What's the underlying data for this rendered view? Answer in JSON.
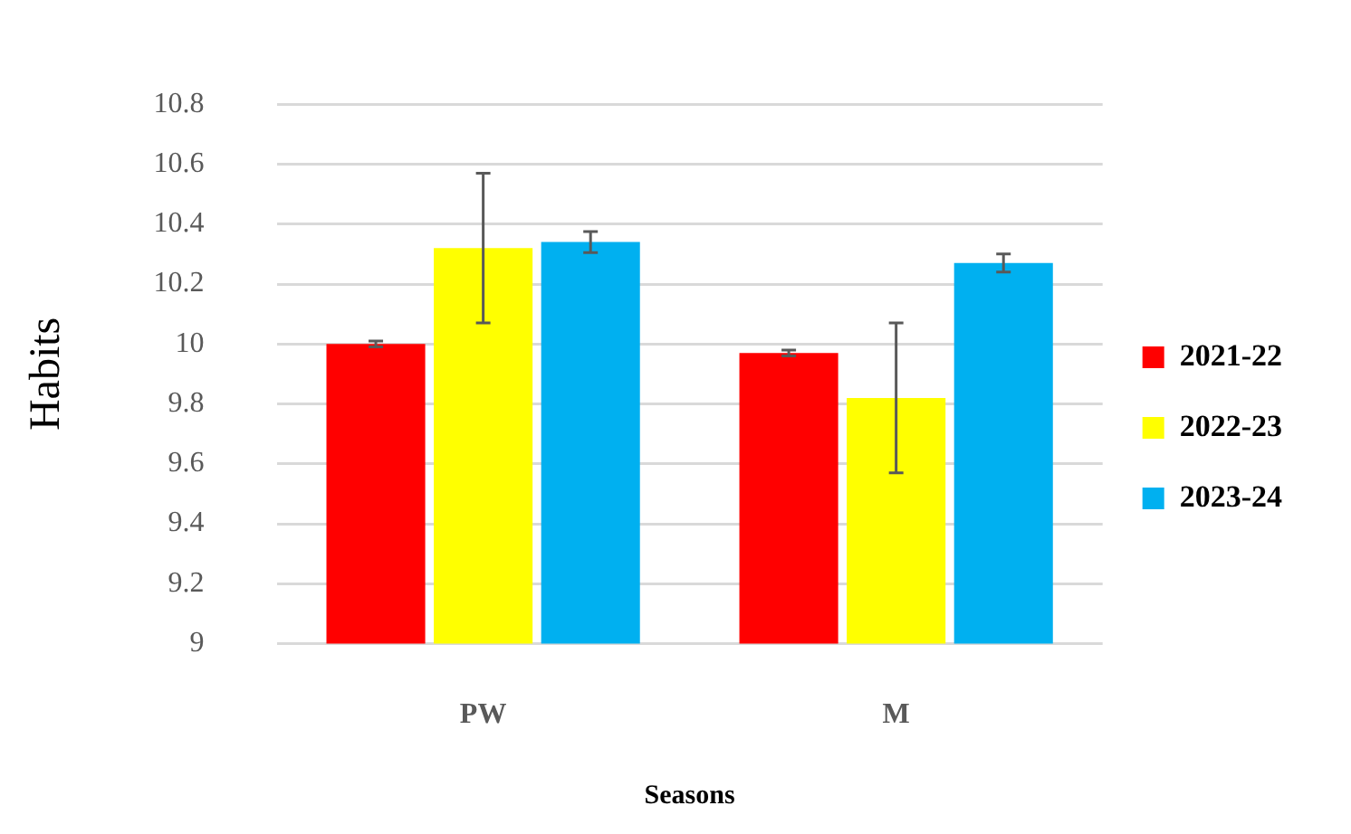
{
  "chart_data": {
    "type": "bar",
    "xlabel": "Seasons",
    "ylabel": "Habits",
    "categories": [
      "PW",
      "M"
    ],
    "series": [
      {
        "name": "2021-22",
        "color": "#ff0000",
        "values": [
          10.0,
          9.97
        ],
        "errors": [
          0.01,
          0.01
        ]
      },
      {
        "name": "2022-23",
        "color": "#ffff00",
        "values": [
          10.32,
          9.82
        ],
        "errors": [
          0.25,
          0.25
        ]
      },
      {
        "name": "2023-24",
        "color": "#00b0f0",
        "values": [
          10.34,
          10.27
        ],
        "errors": [
          0.035,
          0.03
        ]
      }
    ],
    "ylim": [
      9,
      10.8
    ],
    "yticks": [
      9,
      9.2,
      9.4,
      9.6,
      9.8,
      10,
      10.2,
      10.4,
      10.6,
      10.8
    ],
    "grid": "y",
    "legend": "right"
  }
}
